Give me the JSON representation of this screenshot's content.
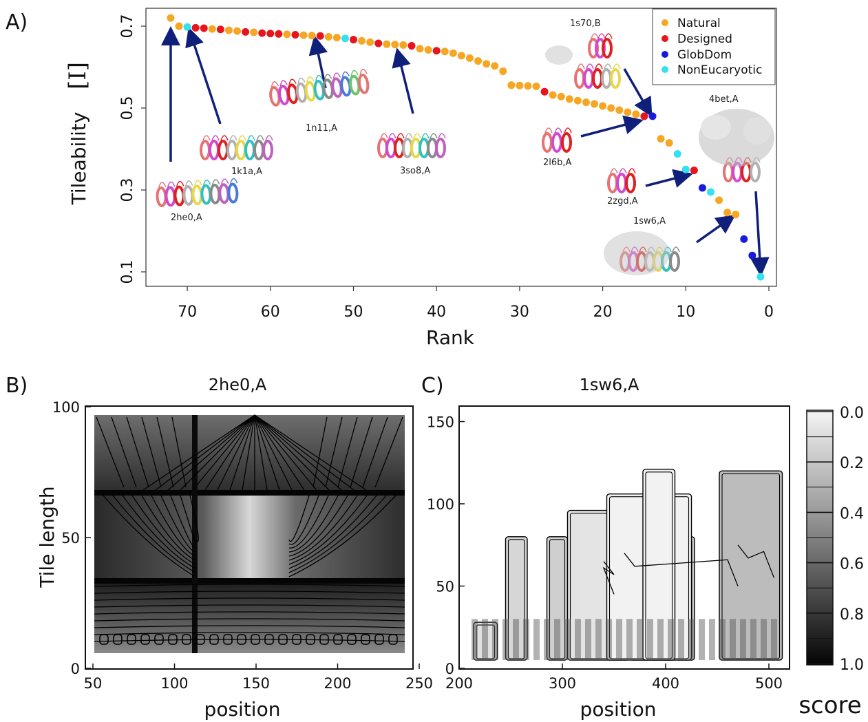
{
  "panels": {
    "a": "A)",
    "b": "B)",
    "c": "C)"
  },
  "chart_data": [
    {
      "type": "scatter",
      "panel": "A)",
      "xlabel": "Rank",
      "ylabel": "Tileability",
      "ylabel_symbol": "[I]",
      "xlim": [
        75,
        0
      ],
      "ylim": [
        0.08,
        0.75
      ],
      "xticks": [
        "70",
        "60",
        "50",
        "40",
        "30",
        "20",
        "10",
        "0"
      ],
      "yticks": [
        "0.1",
        "0.3",
        "0.5",
        "0.7"
      ],
      "legend_position": "top-right",
      "categories": {
        "Natural": "#f5a623",
        "Designed": "#e8141c",
        "GlobDom": "#1a1adc",
        "NonEucaryotic": "#35e0ef"
      },
      "legend": [
        "Natural",
        "Designed",
        "GlobDom",
        "NonEucaryotic"
      ],
      "points": [
        {
          "rank": 72,
          "value": 0.72,
          "category": "Natural"
        },
        {
          "rank": 71,
          "value": 0.7,
          "category": "Natural"
        },
        {
          "rank": 70,
          "value": 0.698,
          "category": "NonEucaryotic"
        },
        {
          "rank": 69,
          "value": 0.696,
          "category": "Designed"
        },
        {
          "rank": 68,
          "value": 0.695,
          "category": "Designed"
        },
        {
          "rank": 67,
          "value": 0.693,
          "category": "Natural"
        },
        {
          "rank": 66,
          "value": 0.692,
          "category": "Designed"
        },
        {
          "rank": 65,
          "value": 0.69,
          "category": "Natural"
        },
        {
          "rank": 64,
          "value": 0.688,
          "category": "Natural"
        },
        {
          "rank": 63,
          "value": 0.686,
          "category": "Designed"
        },
        {
          "rank": 62,
          "value": 0.685,
          "category": "Natural"
        },
        {
          "rank": 61,
          "value": 0.683,
          "category": "Designed"
        },
        {
          "rank": 60,
          "value": 0.682,
          "category": "Designed"
        },
        {
          "rank": 59,
          "value": 0.681,
          "category": "Designed"
        },
        {
          "rank": 58,
          "value": 0.68,
          "category": "Natural"
        },
        {
          "rank": 57,
          "value": 0.679,
          "category": "Designed"
        },
        {
          "rank": 56,
          "value": 0.678,
          "category": "Natural"
        },
        {
          "rank": 55,
          "value": 0.677,
          "category": "Natural"
        },
        {
          "rank": 54,
          "value": 0.676,
          "category": "Designed"
        },
        {
          "rank": 53,
          "value": 0.674,
          "category": "Natural"
        },
        {
          "rank": 52,
          "value": 0.672,
          "category": "Natural"
        },
        {
          "rank": 51,
          "value": 0.67,
          "category": "NonEucaryotic"
        },
        {
          "rank": 50,
          "value": 0.667,
          "category": "Designed"
        },
        {
          "rank": 49,
          "value": 0.664,
          "category": "Natural"
        },
        {
          "rank": 48,
          "value": 0.661,
          "category": "Natural"
        },
        {
          "rank": 47,
          "value": 0.658,
          "category": "Designed"
        },
        {
          "rank": 46,
          "value": 0.656,
          "category": "Natural"
        },
        {
          "rank": 45,
          "value": 0.655,
          "category": "Natural"
        },
        {
          "rank": 44,
          "value": 0.654,
          "category": "Natural"
        },
        {
          "rank": 43,
          "value": 0.652,
          "category": "Designed"
        },
        {
          "rank": 42,
          "value": 0.645,
          "category": "Natural"
        },
        {
          "rank": 41,
          "value": 0.642,
          "category": "Natural"
        },
        {
          "rank": 40,
          "value": 0.64,
          "category": "Designed"
        },
        {
          "rank": 39,
          "value": 0.638,
          "category": "Natural"
        },
        {
          "rank": 38,
          "value": 0.634,
          "category": "Natural"
        },
        {
          "rank": 37,
          "value": 0.628,
          "category": "Natural"
        },
        {
          "rank": 36,
          "value": 0.622,
          "category": "Natural"
        },
        {
          "rank": 35,
          "value": 0.615,
          "category": "Natural"
        },
        {
          "rank": 34,
          "value": 0.608,
          "category": "Natural"
        },
        {
          "rank": 33,
          "value": 0.603,
          "category": "Natural"
        },
        {
          "rank": 32,
          "value": 0.59,
          "category": "Natural"
        },
        {
          "rank": 31,
          "value": 0.556,
          "category": "Natural"
        },
        {
          "rank": 30,
          "value": 0.555,
          "category": "Natural"
        },
        {
          "rank": 29,
          "value": 0.554,
          "category": "Natural"
        },
        {
          "rank": 28,
          "value": 0.553,
          "category": "Natural"
        },
        {
          "rank": 27,
          "value": 0.54,
          "category": "Designed"
        },
        {
          "rank": 26,
          "value": 0.532,
          "category": "Natural"
        },
        {
          "rank": 25,
          "value": 0.528,
          "category": "Natural"
        },
        {
          "rank": 24,
          "value": 0.522,
          "category": "Natural"
        },
        {
          "rank": 23,
          "value": 0.518,
          "category": "Natural"
        },
        {
          "rank": 22,
          "value": 0.514,
          "category": "Natural"
        },
        {
          "rank": 21,
          "value": 0.51,
          "category": "Natural"
        },
        {
          "rank": 20,
          "value": 0.505,
          "category": "Natural"
        },
        {
          "rank": 19,
          "value": 0.5,
          "category": "Natural"
        },
        {
          "rank": 18,
          "value": 0.495,
          "category": "Natural"
        },
        {
          "rank": 17,
          "value": 0.49,
          "category": "Natural"
        },
        {
          "rank": 16,
          "value": 0.485,
          "category": "Natural"
        },
        {
          "rank": 15,
          "value": 0.48,
          "category": "Designed"
        },
        {
          "rank": 14,
          "value": 0.48,
          "category": "GlobDom"
        },
        {
          "rank": 13,
          "value": 0.425,
          "category": "Natural"
        },
        {
          "rank": 12,
          "value": 0.415,
          "category": "Natural"
        },
        {
          "rank": 11,
          "value": 0.388,
          "category": "NonEucaryotic"
        },
        {
          "rank": 10,
          "value": 0.35,
          "category": "NonEucaryotic"
        },
        {
          "rank": 9,
          "value": 0.348,
          "category": "Designed"
        },
        {
          "rank": 8,
          "value": 0.305,
          "category": "GlobDom"
        },
        {
          "rank": 7,
          "value": 0.295,
          "category": "NonEucaryotic"
        },
        {
          "rank": 6,
          "value": 0.275,
          "category": "Natural"
        },
        {
          "rank": 5,
          "value": 0.245,
          "category": "Natural"
        },
        {
          "rank": 4,
          "value": 0.24,
          "category": "Natural"
        },
        {
          "rank": 3,
          "value": 0.18,
          "category": "GlobDom"
        },
        {
          "rank": 2,
          "value": 0.14,
          "category": "GlobDom"
        },
        {
          "rank": 1,
          "value": 0.088,
          "category": "NonEucaryotic"
        }
      ],
      "annotations": [
        {
          "label": "2he0,A",
          "rank": 72,
          "value": 0.72
        },
        {
          "label": "1k1a,A",
          "rank": 70,
          "value": 0.698
        },
        {
          "label": "1n11,A",
          "rank": 53,
          "value": 0.674
        },
        {
          "label": "3so8,A",
          "rank": 45,
          "value": 0.655
        },
        {
          "label": "2l6b,A",
          "rank": 15,
          "value": 0.48
        },
        {
          "label": "1s70,B",
          "rank": 14,
          "value": 0.48
        },
        {
          "label": "2zgd,A",
          "rank": 9,
          "value": 0.348
        },
        {
          "label": "1sw6,A",
          "rank": 5,
          "value": 0.245
        },
        {
          "label": "4bet,A",
          "rank": 1,
          "value": 0.088
        }
      ]
    },
    {
      "type": "heatmap",
      "panel": "B)",
      "title": "2he0,A",
      "xlabel": "position",
      "ylabel": "Tile length",
      "xlim": [
        48,
        252
      ],
      "ylim": [
        0,
        100
      ],
      "xticks": [
        "50",
        "100",
        "150",
        "200",
        "250"
      ],
      "yticks": [
        "0",
        "50",
        "100"
      ]
    },
    {
      "type": "heatmap",
      "panel": "C)",
      "title": "1sw6,A",
      "xlabel": "position",
      "xlim": [
        200,
        525
      ],
      "ylim": [
        0,
        160
      ],
      "xticks": [
        "200",
        "300",
        "400",
        "500"
      ],
      "yticks": [
        "0",
        "50",
        "100",
        "150"
      ],
      "colorbar": {
        "label": "score",
        "ticks": [
          "0.0",
          "0.2",
          "0.4",
          "0.6",
          "0.8",
          "1.0"
        ]
      }
    }
  ]
}
